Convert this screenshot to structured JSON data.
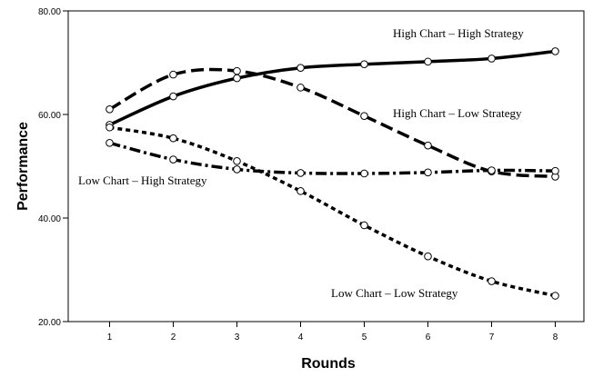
{
  "chart_data": {
    "type": "line",
    "title": "",
    "xlabel": "Rounds",
    "ylabel": "Performance",
    "x": [
      1,
      2,
      3,
      4,
      5,
      6,
      7,
      8
    ],
    "xlim": [
      0.35,
      8.45
    ],
    "ylim": [
      20,
      80
    ],
    "yticks": [
      20,
      40,
      60,
      80
    ],
    "ytick_labels": [
      "20.00",
      "40.00",
      "60.00",
      "80.00"
    ],
    "xtick_labels": [
      "1",
      "2",
      "3",
      "4",
      "5",
      "6",
      "7",
      "8"
    ],
    "grid": false,
    "legend": "none",
    "series": [
      {
        "name": "High Chart – High Strategy",
        "style": "solid",
        "values": [
          58.0,
          63.5,
          67.0,
          69.0,
          69.7,
          70.2,
          70.8,
          72.2
        ]
      },
      {
        "name": "High Chart – Low Strategy",
        "style": "dashed",
        "values": [
          61.0,
          67.7,
          68.4,
          65.2,
          59.7,
          54.0,
          49.0,
          48.0
        ]
      },
      {
        "name": "Low Chart – High Strategy",
        "style": "dashdot",
        "values": [
          54.5,
          51.3,
          49.4,
          48.7,
          48.6,
          48.8,
          49.2,
          49.1
        ]
      },
      {
        "name": "Low Chart – Low Strategy",
        "style": "dotted",
        "values": [
          57.5,
          55.4,
          51.0,
          45.2,
          38.6,
          32.6,
          27.8,
          25.0
        ]
      }
    ]
  }
}
